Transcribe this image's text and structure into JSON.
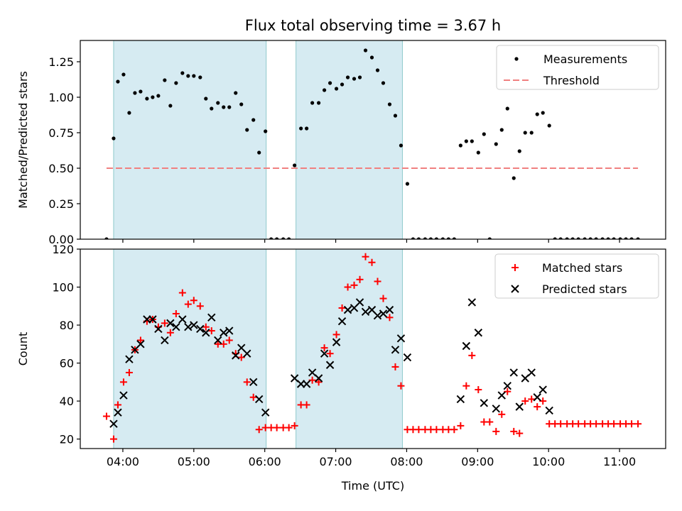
{
  "figure_title": "Flux total observing time = 3.67 h",
  "chart_data": [
    {
      "type": "scatter",
      "panel": "top",
      "ylabel": "Matched/Predicted stars",
      "ylim": [
        0,
        1.4
      ],
      "xlim": [
        3.4,
        11.65
      ],
      "yticks": [
        0.0,
        0.25,
        0.5,
        0.75,
        1.0,
        1.25
      ],
      "ytick_labels": [
        "0.00",
        "0.25",
        "0.50",
        "0.75",
        "1.00",
        "1.25"
      ],
      "shaded_intervals": [
        [
          3.87,
          6.02
        ],
        [
          6.44,
          7.94
        ]
      ],
      "legend": {
        "placement": "top-right"
      },
      "series": [
        {
          "name": "Measurements",
          "marker": "dot",
          "color": "#000000",
          "x": [
            3.77,
            3.87,
            3.93,
            4.01,
            4.09,
            4.17,
            4.25,
            4.34,
            4.42,
            4.5,
            4.59,
            4.67,
            4.75,
            4.84,
            4.92,
            5.0,
            5.09,
            5.17,
            5.25,
            5.34,
            5.42,
            5.5,
            5.59,
            5.67,
            5.75,
            5.84,
            5.92,
            6.01,
            6.09,
            6.17,
            6.26,
            6.34,
            6.42,
            6.51,
            6.59,
            6.67,
            6.76,
            6.84,
            6.92,
            7.01,
            7.09,
            7.17,
            7.26,
            7.34,
            7.42,
            7.51,
            7.59,
            7.67,
            7.76,
            7.84,
            7.92,
            8.01,
            8.09,
            8.17,
            8.26,
            8.34,
            8.42,
            8.51,
            8.59,
            8.67,
            8.76,
            8.84,
            8.92,
            9.01,
            9.09,
            9.17,
            9.26,
            9.34,
            9.42,
            9.51,
            9.59,
            9.67,
            9.76,
            9.84,
            9.92,
            10.01,
            10.09,
            10.17,
            10.26,
            10.34,
            10.42,
            10.51,
            10.59,
            10.67,
            10.76,
            10.84,
            10.92,
            11.01,
            11.09,
            11.17,
            11.26
          ],
          "y": [
            0.0,
            0.71,
            1.11,
            1.16,
            0.89,
            1.03,
            1.04,
            0.99,
            1.0,
            1.01,
            1.12,
            0.94,
            1.1,
            1.17,
            1.15,
            1.15,
            1.14,
            0.99,
            0.92,
            0.96,
            0.93,
            0.93,
            1.03,
            0.95,
            0.77,
            0.84,
            0.61,
            0.76,
            0.0,
            0.0,
            0.0,
            0.0,
            0.52,
            0.78,
            0.78,
            0.96,
            0.96,
            1.05,
            1.1,
            1.06,
            1.09,
            1.14,
            1.13,
            1.14,
            1.33,
            1.28,
            1.19,
            1.1,
            0.95,
            0.87,
            0.66,
            0.39,
            0.0,
            0.0,
            0.0,
            0.0,
            0.0,
            0.0,
            0.0,
            0.0,
            0.66,
            0.69,
            0.69,
            0.61,
            0.74,
            0.0,
            0.67,
            0.77,
            0.92,
            0.43,
            0.62,
            0.75,
            0.75,
            0.88,
            0.89,
            0.8,
            0.0,
            0.0,
            0.0,
            0.0,
            0.0,
            0.0,
            0.0,
            0.0,
            0.0,
            0.0,
            0.0,
            0.0,
            0.0,
            0.0,
            0.0
          ]
        },
        {
          "name": "Threshold",
          "marker": "dashed-line",
          "color": "#f08080",
          "x": [
            3.77,
            11.26
          ],
          "y": [
            0.5,
            0.5
          ]
        }
      ]
    },
    {
      "type": "scatter",
      "panel": "bottom",
      "xlabel": "Time (UTC)",
      "ylabel": "Count",
      "ylim": [
        15,
        120
      ],
      "xlim": [
        3.4,
        11.65
      ],
      "xticks": [
        4,
        5,
        6,
        7,
        8,
        9,
        10,
        11
      ],
      "xtick_labels": [
        "04:00",
        "05:00",
        "06:00",
        "07:00",
        "08:00",
        "09:00",
        "10:00",
        "11:00"
      ],
      "yticks": [
        20,
        40,
        60,
        80,
        100,
        120
      ],
      "ytick_labels": [
        "20",
        "40",
        "60",
        "80",
        "100",
        "120"
      ],
      "shaded_intervals": [
        [
          3.87,
          6.02
        ],
        [
          6.44,
          7.94
        ]
      ],
      "legend": {
        "placement": "top-right"
      },
      "series": [
        {
          "name": "Matched stars",
          "marker": "plus",
          "color": "#ff0000",
          "x": [
            3.77,
            3.87,
            3.93,
            4.01,
            4.09,
            4.17,
            4.25,
            4.34,
            4.42,
            4.5,
            4.59,
            4.67,
            4.75,
            4.84,
            4.92,
            5.0,
            5.09,
            5.17,
            5.25,
            5.34,
            5.42,
            5.5,
            5.59,
            5.67,
            5.75,
            5.84,
            5.92,
            6.01,
            6.09,
            6.17,
            6.26,
            6.34,
            6.42,
            6.51,
            6.59,
            6.67,
            6.76,
            6.84,
            6.92,
            7.01,
            7.09,
            7.17,
            7.26,
            7.34,
            7.42,
            7.51,
            7.59,
            7.67,
            7.76,
            7.84,
            7.92,
            8.01,
            8.09,
            8.17,
            8.26,
            8.34,
            8.42,
            8.51,
            8.59,
            8.67,
            8.76,
            8.84,
            8.92,
            9.01,
            9.09,
            9.17,
            9.26,
            9.34,
            9.42,
            9.51,
            9.59,
            9.67,
            9.76,
            9.84,
            9.92,
            10.01,
            10.09,
            10.17,
            10.26,
            10.34,
            10.42,
            10.51,
            10.59,
            10.67,
            10.76,
            10.84,
            10.92,
            11.01,
            11.09,
            11.17,
            11.26
          ],
          "y": [
            32,
            20,
            38,
            50,
            55,
            67,
            72,
            82,
            83,
            79,
            81,
            76,
            86,
            97,
            91,
            93,
            90,
            79,
            77,
            70,
            70,
            72,
            65,
            63,
            50,
            42,
            25,
            26,
            26,
            26,
            26,
            26,
            27,
            38,
            38,
            51,
            50,
            68,
            65,
            75,
            89,
            100,
            101,
            104,
            116,
            113,
            103,
            94,
            84,
            58,
            48,
            25,
            25,
            25,
            25,
            25,
            25,
            25,
            25,
            25,
            27,
            48,
            64,
            46,
            29,
            29,
            24,
            33,
            45,
            24,
            23,
            40,
            41,
            37,
            40,
            28,
            28,
            28,
            28,
            28,
            28,
            28,
            28,
            28,
            28,
            28,
            28,
            28,
            28,
            28,
            28
          ]
        },
        {
          "name": "Predicted stars",
          "marker": "x",
          "color": "#000000",
          "x": [
            3.87,
            3.93,
            4.01,
            4.09,
            4.17,
            4.25,
            4.34,
            4.42,
            4.5,
            4.59,
            4.67,
            4.75,
            4.84,
            4.92,
            5.0,
            5.09,
            5.17,
            5.25,
            5.34,
            5.42,
            5.5,
            5.59,
            5.67,
            5.75,
            5.84,
            5.92,
            6.01,
            6.42,
            6.51,
            6.59,
            6.67,
            6.76,
            6.84,
            6.92,
            7.01,
            7.09,
            7.17,
            7.26,
            7.34,
            7.42,
            7.51,
            7.59,
            7.67,
            7.76,
            7.84,
            7.92,
            8.01,
            8.76,
            8.84,
            8.92,
            9.01,
            9.09,
            9.26,
            9.34,
            9.42,
            9.51,
            9.59,
            9.67,
            9.76,
            9.84,
            9.92,
            10.01
          ],
          "y": [
            28,
            34,
            43,
            62,
            67,
            70,
            83,
            83,
            78,
            72,
            81,
            79,
            83,
            79,
            80,
            78,
            76,
            84,
            72,
            76,
            77,
            64,
            68,
            65,
            50,
            41,
            34,
            52,
            49,
            49,
            55,
            52,
            65,
            59,
            71,
            82,
            88,
            89,
            92,
            87,
            88,
            85,
            86,
            88,
            67,
            73,
            63,
            41,
            69,
            92,
            76,
            39,
            36,
            43,
            48,
            55,
            37,
            52,
            55,
            42,
            46,
            35
          ]
        }
      ]
    }
  ]
}
